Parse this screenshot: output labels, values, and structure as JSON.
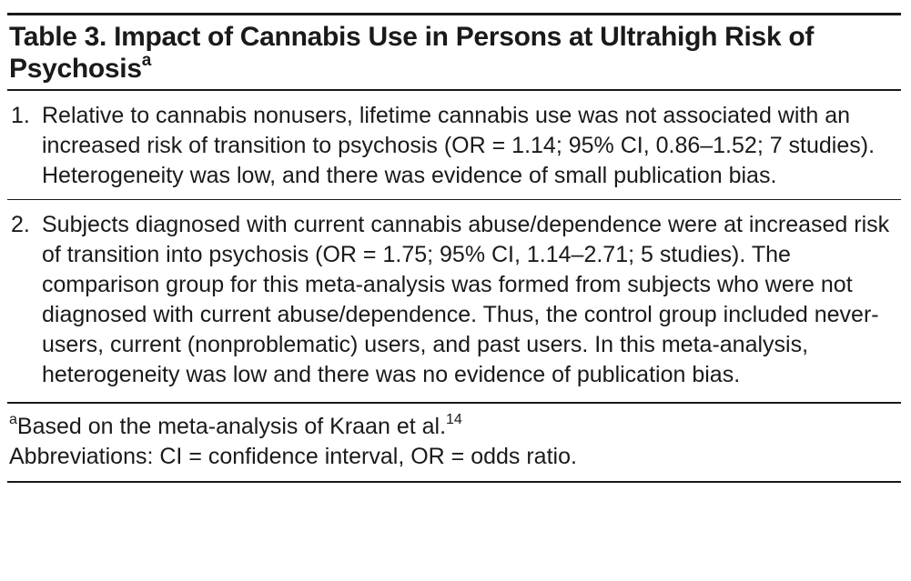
{
  "table": {
    "title": "Table 3. Impact of Cannabis Use in Persons at Ultrahigh Risk of Psychosis",
    "title_marker": "a",
    "items": [
      {
        "number": "1.",
        "text": "Relative to cannabis nonusers, lifetime cannabis use was not associated with an increased risk of transition to psychosis (OR = 1.14; 95% CI, 0.86–1.52; 7 studies). Heterogeneity was low, and there was evidence of small publication bias."
      },
      {
        "number": "2.",
        "text": "Subjects diagnosed with current cannabis abuse/dependence were at increased risk of transition into psychosis (OR = 1.75; 95% CI, 1.14–2.71; 5 studies). The comparison group for this meta-analysis was formed from subjects who were not diagnosed with current abuse/dependence. Thus, the control group included never-users, current (nonproblematic) users, and past users. In this meta-analysis, heterogeneity was low and there was no evidence of publication bias."
      }
    ],
    "footnote": {
      "marker": "a",
      "text": "Based on the meta-analysis of Kraan et al.",
      "ref": "14"
    },
    "abbreviations": "Abbreviations: CI = confidence interval, OR = odds ratio."
  }
}
